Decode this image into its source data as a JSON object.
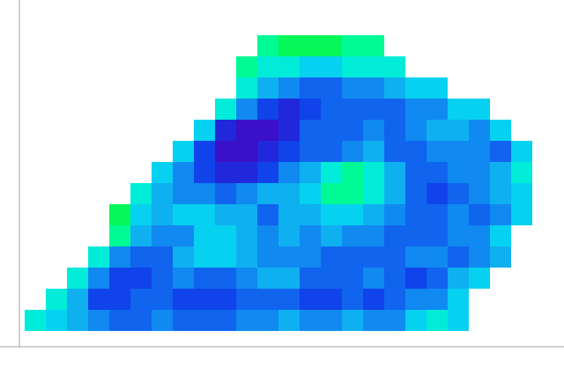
{
  "chart_data": {
    "type": "heatmap",
    "tick_labels": false,
    "color_range": [
      0,
      10
    ],
    "cells": [
      [
        null,
        null,
        null,
        null,
        null,
        null,
        null,
        null,
        null,
        null,
        null,
        8,
        9,
        9,
        9,
        8,
        8,
        null,
        null,
        null,
        null,
        null,
        null,
        null
      ],
      [
        null,
        null,
        null,
        null,
        null,
        null,
        null,
        null,
        null,
        null,
        8,
        7,
        7,
        6,
        6,
        7,
        7,
        7,
        null,
        null,
        null,
        null,
        null,
        null
      ],
      [
        null,
        null,
        null,
        null,
        null,
        null,
        null,
        null,
        null,
        null,
        7,
        5,
        4,
        3,
        3,
        4,
        4,
        5,
        6,
        6,
        null,
        null,
        null,
        null
      ],
      [
        null,
        null,
        null,
        null,
        null,
        null,
        null,
        null,
        null,
        7,
        4,
        2,
        1,
        2,
        3,
        3,
        3,
        3,
        4,
        4,
        6,
        6,
        null,
        null
      ],
      [
        null,
        null,
        null,
        null,
        null,
        null,
        null,
        null,
        6,
        1,
        0,
        0,
        1,
        3,
        3,
        3,
        4,
        3,
        4,
        5,
        5,
        4,
        6,
        null
      ],
      [
        null,
        null,
        null,
        null,
        null,
        null,
        null,
        6,
        2,
        0,
        0,
        1,
        2,
        3,
        3,
        4,
        5,
        3,
        3,
        4,
        4,
        4,
        3,
        6
      ],
      [
        null,
        null,
        null,
        null,
        null,
        null,
        6,
        4,
        2,
        1,
        1,
        2,
        4,
        5,
        7,
        8,
        7,
        5,
        3,
        3,
        4,
        4,
        5,
        7
      ],
      [
        null,
        null,
        null,
        null,
        null,
        7,
        5,
        4,
        4,
        3,
        4,
        5,
        5,
        6,
        8,
        8,
        7,
        5,
        3,
        2,
        3,
        4,
        5,
        6
      ],
      [
        null,
        null,
        null,
        null,
        9,
        6,
        5,
        6,
        6,
        5,
        5,
        3,
        5,
        5,
        6,
        6,
        5,
        4,
        3,
        3,
        4,
        3,
        4,
        6
      ],
      [
        null,
        null,
        null,
        null,
        8,
        5,
        4,
        4,
        6,
        6,
        5,
        4,
        5,
        4,
        5,
        4,
        4,
        3,
        3,
        3,
        4,
        4,
        6,
        null
      ],
      [
        null,
        null,
        null,
        7,
        4,
        3,
        3,
        5,
        6,
        6,
        5,
        4,
        4,
        4,
        3,
        3,
        3,
        3,
        4,
        4,
        3,
        4,
        5,
        null
      ],
      [
        null,
        null,
        7,
        4,
        2,
        2,
        3,
        4,
        3,
        3,
        4,
        5,
        5,
        3,
        3,
        3,
        4,
        3,
        2,
        3,
        5,
        6,
        null,
        null
      ],
      [
        null,
        7,
        5,
        2,
        2,
        3,
        3,
        2,
        2,
        2,
        3,
        3,
        3,
        2,
        2,
        3,
        2,
        3,
        4,
        4,
        6,
        null,
        null,
        null
      ],
      [
        7,
        6,
        5,
        4,
        3,
        3,
        4,
        3,
        3,
        3,
        4,
        4,
        5,
        4,
        4,
        5,
        4,
        4,
        6,
        7,
        6,
        null,
        null,
        null
      ]
    ]
  }
}
